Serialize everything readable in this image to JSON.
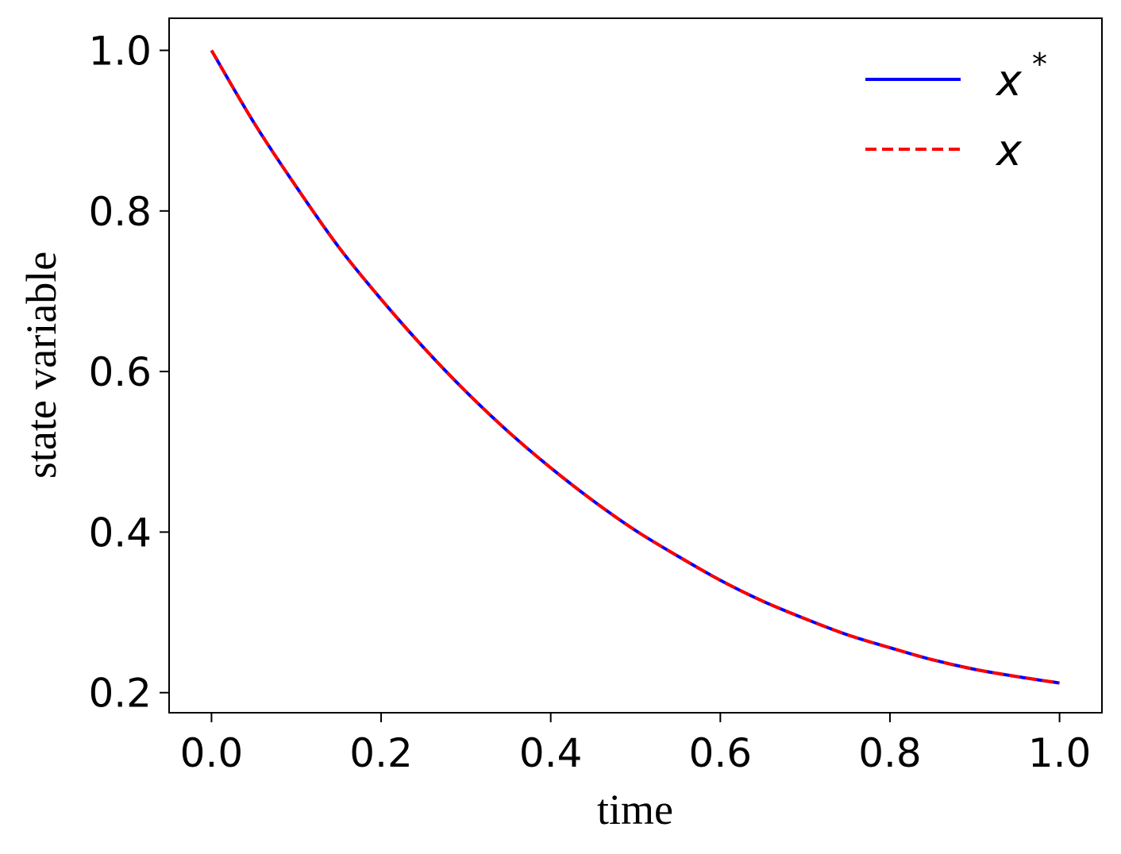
{
  "chart_data": {
    "type": "line",
    "title": "",
    "xlabel": "time",
    "ylabel": "state variable",
    "xlim": [
      -0.05,
      1.05
    ],
    "ylim": [
      0.175,
      1.04
    ],
    "xticks": [
      0.0,
      0.2,
      0.4,
      0.6,
      0.8,
      1.0
    ],
    "xtick_labels": [
      "0.0",
      "0.2",
      "0.4",
      "0.6",
      "0.8",
      "1.0"
    ],
    "yticks": [
      0.2,
      0.4,
      0.6,
      0.8,
      1.0
    ],
    "ytick_labels": [
      "0.2",
      "0.4",
      "0.6",
      "0.8",
      "1.0"
    ],
    "grid": false,
    "legend_position": "top-right",
    "x": [
      0.0,
      0.05,
      0.1,
      0.15,
      0.2,
      0.25,
      0.3,
      0.35,
      0.4,
      0.45,
      0.5,
      0.55,
      0.6,
      0.65,
      0.7,
      0.75,
      0.8,
      0.85,
      0.9,
      0.95,
      1.0
    ],
    "series": [
      {
        "name": "x",
        "name_sup": "*",
        "color": "#0000ff",
        "style": "solid",
        "values": [
          1.0,
          0.91,
          0.83,
          0.755,
          0.69,
          0.63,
          0.575,
          0.525,
          0.48,
          0.439,
          0.402,
          0.37,
          0.34,
          0.314,
          0.292,
          0.272,
          0.256,
          0.241,
          0.229,
          0.22,
          0.212
        ]
      },
      {
        "name": "x",
        "name_sup": "",
        "color": "#ff0000",
        "style": "dashed",
        "values": [
          1.0,
          0.91,
          0.83,
          0.755,
          0.69,
          0.63,
          0.575,
          0.525,
          0.48,
          0.439,
          0.402,
          0.37,
          0.34,
          0.314,
          0.292,
          0.272,
          0.256,
          0.241,
          0.229,
          0.22,
          0.212
        ]
      }
    ]
  }
}
